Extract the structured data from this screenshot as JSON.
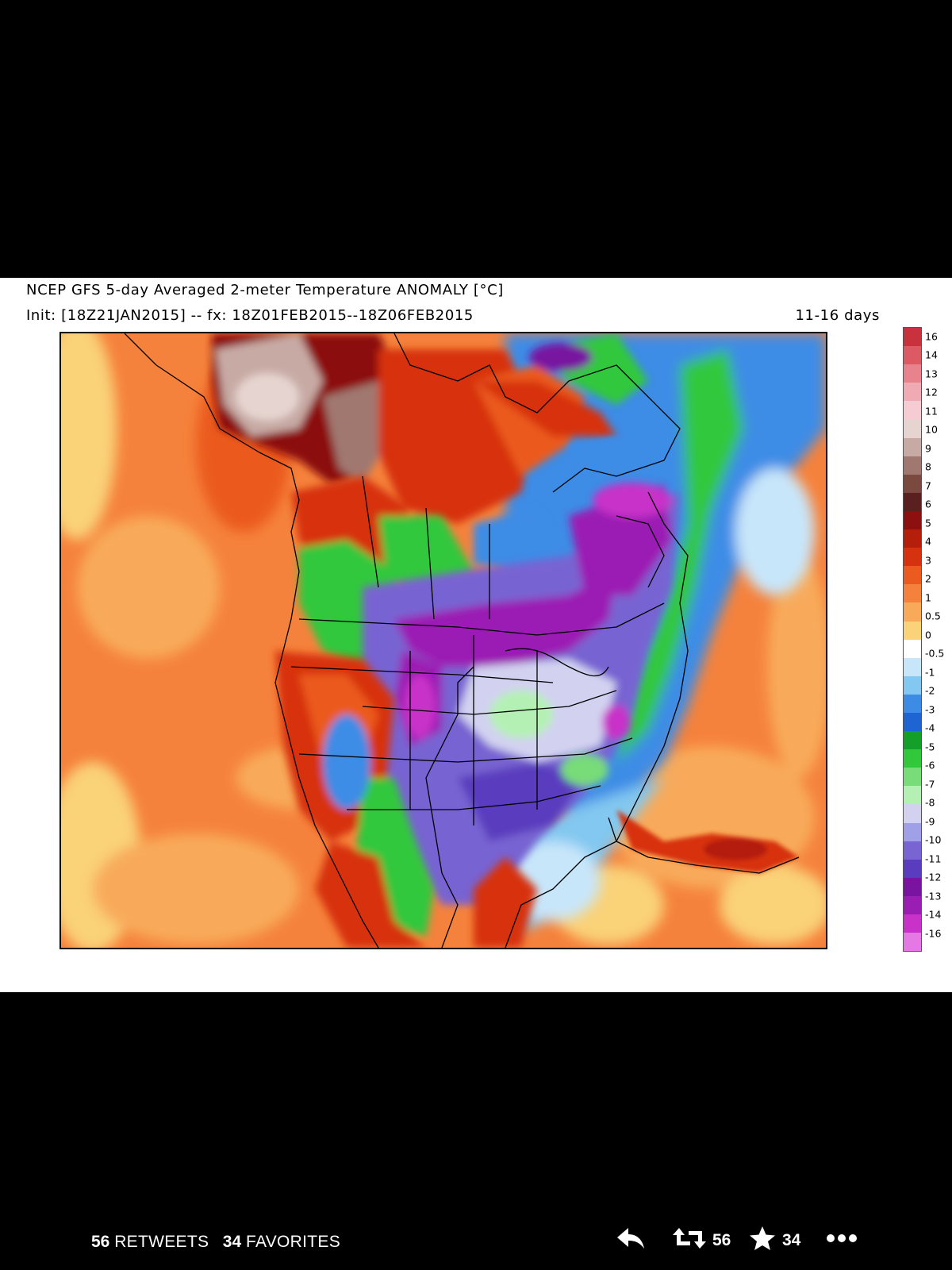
{
  "map": {
    "title": "NCEP GFS 5-day Averaged 2-meter Temperature ANOMALY [°C]",
    "subtitle": "Init: [18Z21JAN2015] -- fx: 18Z01FEB2015--18Z06FEB2015",
    "range": "11-16 days",
    "region": "North America temperature anomaly map"
  },
  "colorbar": {
    "labels": [
      "16",
      "14",
      "13",
      "12",
      "11",
      "10",
      "9",
      "8",
      "7",
      "6",
      "5",
      "4",
      "3",
      "2",
      "1",
      "0.5",
      "0",
      "-0.5",
      "-1",
      "-2",
      "-3",
      "-4",
      "-5",
      "-6",
      "-7",
      "-8",
      "-9",
      "-10",
      "-11",
      "-12",
      "-13",
      "-14",
      "-16"
    ],
    "colors": [
      "#c8323c",
      "#dc5a64",
      "#e8828c",
      "#f0aab4",
      "#f5ccd4",
      "#e6d4d0",
      "#c8aaa4",
      "#a07870",
      "#7a4a40",
      "#5a2020",
      "#8c1010",
      "#b41e0a",
      "#d7320f",
      "#eb5a1e",
      "#f5823c",
      "#f8aa5a",
      "#fad278",
      "#ffffff",
      "#c8e6fa",
      "#82c8f0",
      "#3c8ce6",
      "#1e64d2",
      "#14a028",
      "#32c83c",
      "#78dc78",
      "#b4f0b4",
      "#d2d2f0",
      "#a0a0e6",
      "#7864d2",
      "#5a3cbe",
      "#7814a0",
      "#9b1eb4",
      "#c832c8",
      "#e678e6"
    ]
  },
  "tweet": {
    "retweets_count": "56",
    "retweets_label": "RETWEETS",
    "favorites_count": "34",
    "favorites_label": "FAVORITES",
    "rt_action_count": "56",
    "fav_action_count": "34"
  },
  "icons": {
    "reply": "reply-icon",
    "retweet": "retweet-icon",
    "favorite": "star-icon",
    "more": "more-dots-icon"
  }
}
